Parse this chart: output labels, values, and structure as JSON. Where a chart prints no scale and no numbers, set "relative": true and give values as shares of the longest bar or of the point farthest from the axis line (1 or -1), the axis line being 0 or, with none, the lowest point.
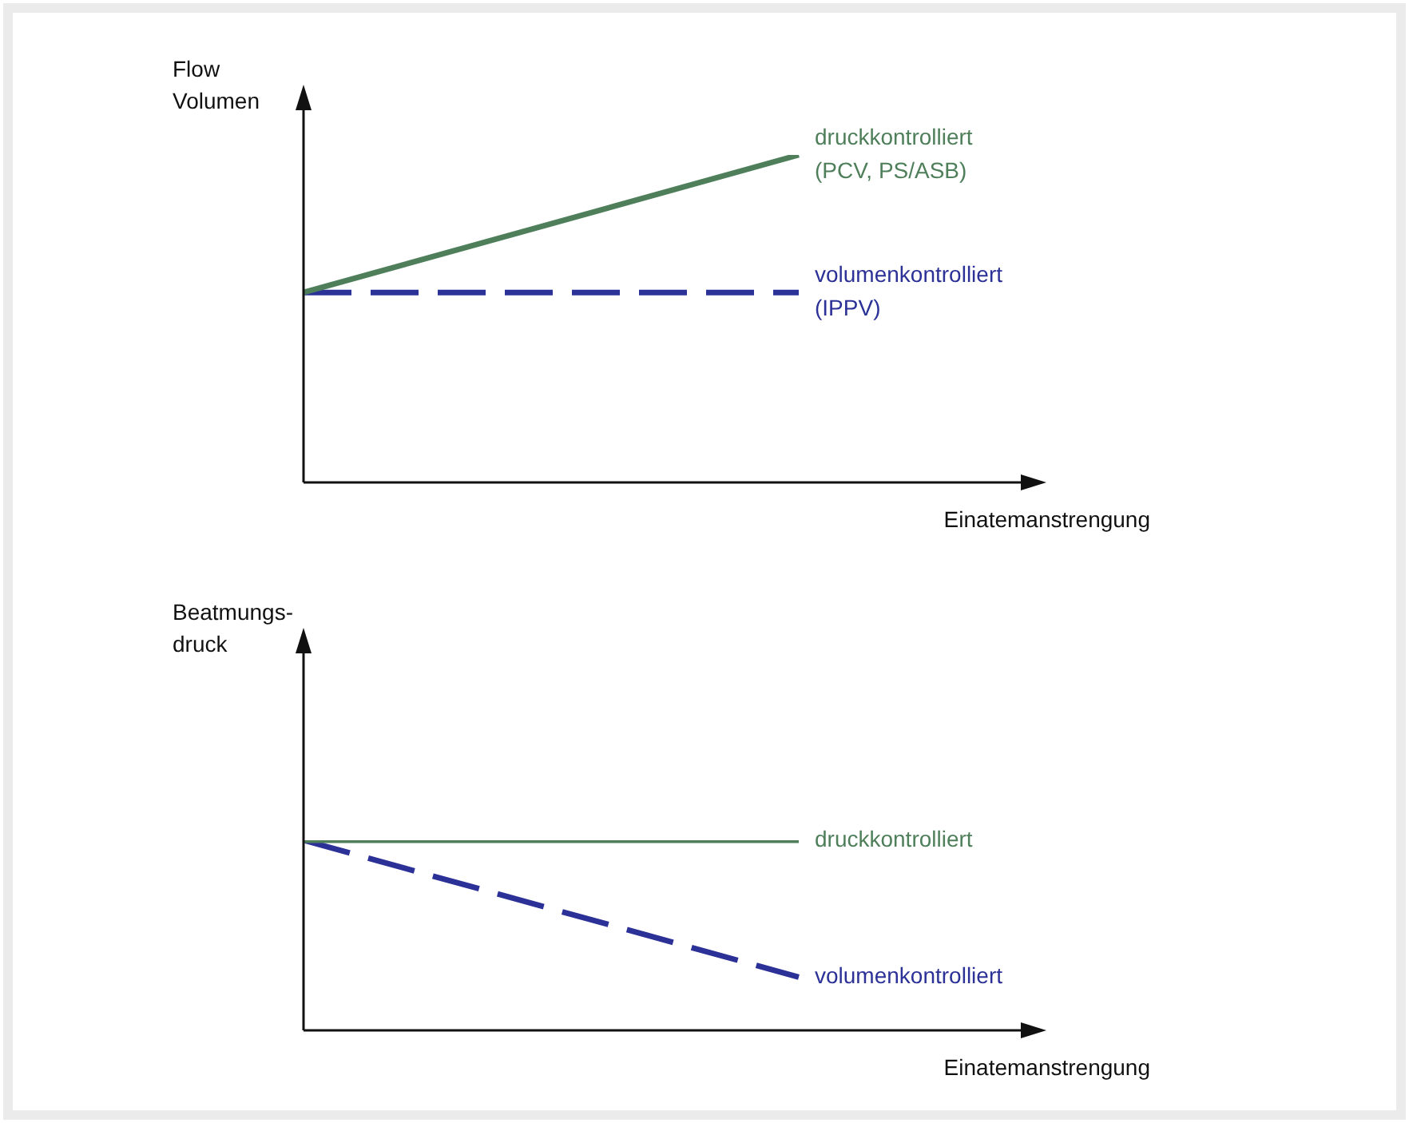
{
  "chart_data": [
    {
      "type": "line",
      "relative": true,
      "categories": [
        null,
        null
      ],
      "ylabel": "Flow\nVolumen",
      "xlabel": "Einatemanstrengung",
      "series": [
        {
          "name": "druckkontrolliert\n(PCV, PS/ASB)",
          "color": "#4e7f5a",
          "values": [
            0.58,
            1
          ],
          "line_style": "solid"
        },
        {
          "name": "volumenkontrolliert\n(IPPV)",
          "color": "#2b3196",
          "values": [
            0.58,
            0.58
          ],
          "line_style": "dashed"
        }
      ]
    },
    {
      "type": "line",
      "relative": true,
      "categories": [
        null,
        null
      ],
      "ylabel": "Beatmungs-\ndruck",
      "xlabel": "Einatemanstrengung",
      "series": [
        {
          "name": "druckkontrolliert",
          "color": "#4e7f5a",
          "values": [
            1,
            1
          ],
          "line_style": "solid"
        },
        {
          "name": "volumenkontrolliert",
          "color": "#2b3196",
          "values": [
            1,
            0.28
          ],
          "line_style": "dashed"
        }
      ]
    }
  ]
}
